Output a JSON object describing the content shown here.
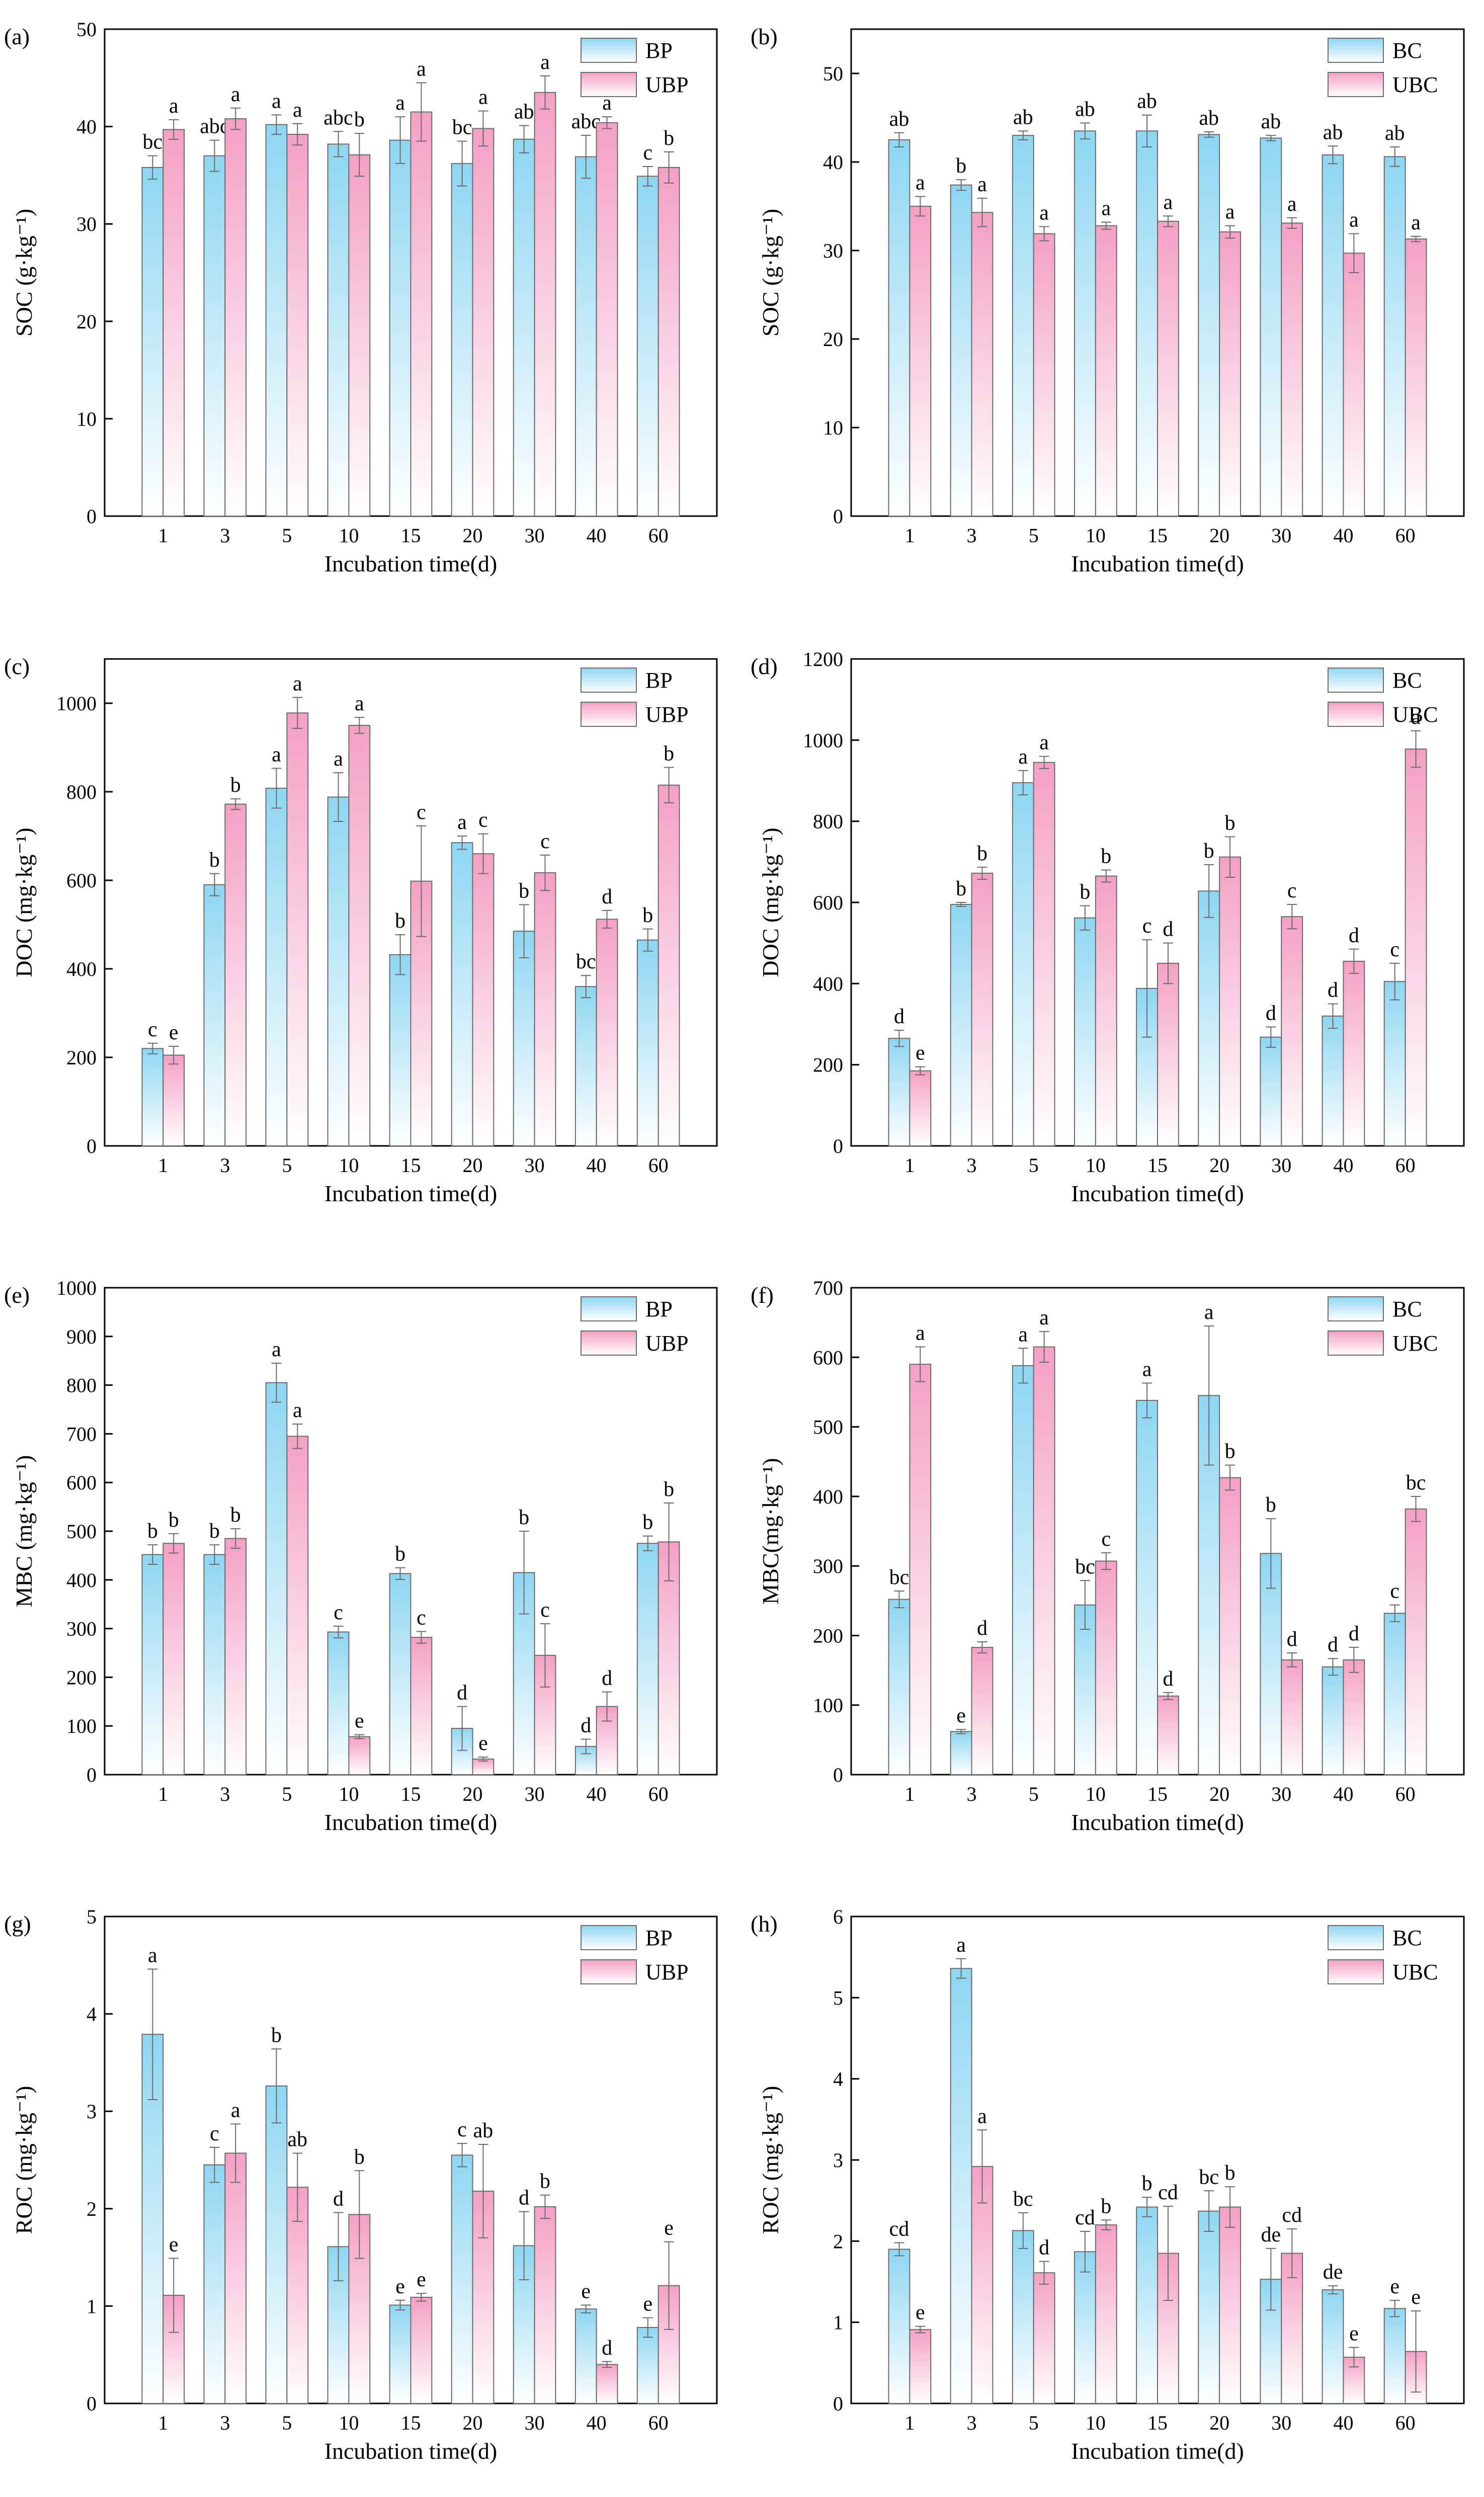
{
  "colors": {
    "blue_top": "#8ed6f2",
    "blue_bottom": "#ffffff",
    "pink_top": "#f4a0c4",
    "pink_bottom": "#ffffff",
    "edge": "#6b6b6b",
    "axis": "#000000"
  },
  "chart_data": [
    {
      "panel": "(a)",
      "type": "bar",
      "xlabel": "Incubation time(d)",
      "ylabel": "SOC (g·kg⁻¹)",
      "ylim": [
        0,
        50
      ],
      "yticks": [
        0,
        10,
        20,
        30,
        40,
        50
      ],
      "legend_position": "top-right",
      "categories": [
        "1",
        "3",
        "5",
        "10",
        "15",
        "20",
        "30",
        "40",
        "60"
      ],
      "series": [
        {
          "name": "BP",
          "color": "blue",
          "values": [
            35.8,
            37.0,
            40.2,
            38.2,
            38.6,
            36.2,
            38.7,
            36.9,
            34.9
          ],
          "errors": [
            1.2,
            1.6,
            1.0,
            1.3,
            2.4,
            2.3,
            1.4,
            2.2,
            1.0
          ],
          "letters": [
            "bc",
            "abc",
            "a",
            "abc",
            "a",
            "bc",
            "ab",
            "abc",
            "c"
          ]
        },
        {
          "name": "UBP",
          "color": "pink",
          "values": [
            39.7,
            40.8,
            39.2,
            37.1,
            41.5,
            39.8,
            43.5,
            40.4,
            35.8
          ],
          "errors": [
            1.0,
            1.1,
            1.1,
            2.2,
            3.0,
            1.8,
            1.7,
            0.6,
            1.6
          ],
          "letters": [
            "a",
            "a",
            "a",
            "b",
            "a",
            "a",
            "a",
            "a",
            "b"
          ]
        }
      ]
    },
    {
      "panel": "(b)",
      "type": "bar",
      "xlabel": "Incubation time(d)",
      "ylabel": "SOC (g·kg⁻¹)",
      "ylim": [
        0,
        55
      ],
      "yticks": [
        0,
        10,
        20,
        30,
        40,
        50
      ],
      "legend_position": "top-right",
      "categories": [
        "1",
        "3",
        "5",
        "10",
        "15",
        "20",
        "30",
        "40",
        "60"
      ],
      "series": [
        {
          "name": "BC",
          "color": "blue",
          "values": [
            42.5,
            37.4,
            43.0,
            43.5,
            43.5,
            43.1,
            42.7,
            40.8,
            40.6
          ],
          "errors": [
            0.8,
            0.6,
            0.5,
            0.9,
            1.8,
            0.3,
            0.3,
            1.0,
            1.1
          ],
          "letters": [
            "ab",
            "b",
            "ab",
            "ab",
            "ab",
            "ab",
            "ab",
            "ab",
            "ab"
          ]
        },
        {
          "name": "UBC",
          "color": "pink",
          "values": [
            35.0,
            34.3,
            31.9,
            32.8,
            33.3,
            32.1,
            33.1,
            29.7,
            31.3
          ],
          "errors": [
            1.1,
            1.6,
            0.8,
            0.4,
            0.6,
            0.7,
            0.6,
            2.2,
            0.3
          ],
          "letters": [
            "a",
            "a",
            "a",
            "a",
            "a",
            "a",
            "a",
            "a",
            "a"
          ]
        }
      ]
    },
    {
      "panel": "(c)",
      "type": "bar",
      "xlabel": "Incubation time(d)",
      "ylabel": "DOC (mg·kg⁻¹)",
      "ylim": [
        0,
        1100
      ],
      "yticks": [
        0,
        200,
        400,
        600,
        800,
        1000
      ],
      "legend_position": "top-right",
      "categories": [
        "1",
        "3",
        "5",
        "10",
        "15",
        "20",
        "30",
        "40",
        "60"
      ],
      "series": [
        {
          "name": "BP",
          "color": "blue",
          "values": [
            220,
            590,
            808,
            788,
            432,
            685,
            485,
            360,
            465
          ],
          "errors": [
            12,
            25,
            45,
            55,
            45,
            15,
            60,
            25,
            25
          ],
          "letters": [
            "c",
            "b",
            "a",
            "a",
            "b",
            "a",
            "b",
            "bc",
            "b"
          ]
        },
        {
          "name": "UBP",
          "color": "pink",
          "values": [
            205,
            772,
            978,
            950,
            598,
            660,
            617,
            512,
            815
          ],
          "errors": [
            20,
            12,
            35,
            18,
            125,
            45,
            40,
            20,
            40
          ],
          "letters": [
            "e",
            "b",
            "a",
            "a",
            "c",
            "c",
            "c",
            "d",
            "b"
          ]
        }
      ]
    },
    {
      "panel": "(d)",
      "type": "bar",
      "xlabel": "Incubation time(d)",
      "ylabel": "DOC (mg·kg⁻¹)",
      "ylim": [
        0,
        1200
      ],
      "yticks": [
        0,
        200,
        400,
        600,
        800,
        1000,
        1200
      ],
      "legend_position": "top-right",
      "categories": [
        "1",
        "3",
        "5",
        "10",
        "15",
        "20",
        "30",
        "40",
        "60"
      ],
      "series": [
        {
          "name": "BC",
          "color": "blue",
          "values": [
            265,
            595,
            895,
            562,
            388,
            628,
            268,
            320,
            405
          ],
          "errors": [
            20,
            5,
            30,
            30,
            120,
            65,
            25,
            30,
            45
          ],
          "letters": [
            "d",
            "b",
            "a",
            "b",
            "c",
            "b",
            "d",
            "d",
            "c"
          ]
        },
        {
          "name": "UBC",
          "color": "pink",
          "values": [
            185,
            672,
            945,
            665,
            450,
            712,
            565,
            455,
            978
          ],
          "errors": [
            10,
            15,
            15,
            15,
            50,
            50,
            30,
            30,
            45
          ],
          "letters": [
            "e",
            "b",
            "a",
            "b",
            "d",
            "b",
            "c",
            "d",
            "a"
          ]
        }
      ]
    },
    {
      "panel": "(e)",
      "type": "bar",
      "xlabel": "Incubation time(d)",
      "ylabel": "MBC (mg·kg⁻¹)",
      "ylim": [
        0,
        1000
      ],
      "yticks": [
        0,
        100,
        200,
        300,
        400,
        500,
        600,
        700,
        800,
        900,
        1000
      ],
      "legend_position": "top-right",
      "categories": [
        "1",
        "3",
        "5",
        "10",
        "15",
        "20",
        "30",
        "40",
        "60"
      ],
      "series": [
        {
          "name": "BP",
          "color": "blue",
          "values": [
            452,
            452,
            805,
            293,
            413,
            95,
            415,
            58,
            475
          ],
          "errors": [
            20,
            20,
            40,
            12,
            12,
            45,
            85,
            15,
            15
          ],
          "letters": [
            "b",
            "b",
            "a",
            "c",
            "b",
            "d",
            "b",
            "d",
            "b"
          ]
        },
        {
          "name": "UBP",
          "color": "pink",
          "values": [
            475,
            485,
            695,
            78,
            282,
            32,
            245,
            140,
            478
          ],
          "errors": [
            20,
            20,
            25,
            4,
            12,
            4,
            65,
            30,
            80
          ],
          "letters": [
            "b",
            "b",
            "a",
            "e",
            "c",
            "e",
            "c",
            "d",
            "b"
          ]
        }
      ]
    },
    {
      "panel": "(f)",
      "type": "bar",
      "xlabel": "Incubation time(d)",
      "ylabel": "MBC(mg·kg⁻¹)",
      "ylim": [
        0,
        700
      ],
      "yticks": [
        0,
        100,
        200,
        300,
        400,
        500,
        600,
        700
      ],
      "legend_position": "top-right",
      "categories": [
        "1",
        "3",
        "5",
        "10",
        "15",
        "20",
        "30",
        "40",
        "60"
      ],
      "series": [
        {
          "name": "BC",
          "color": "blue",
          "values": [
            252,
            62,
            588,
            244,
            538,
            545,
            318,
            155,
            232
          ],
          "errors": [
            12,
            3,
            25,
            35,
            25,
            100,
            50,
            12,
            12
          ],
          "letters": [
            "bc",
            "e",
            "a",
            "bc",
            "a",
            "a",
            "b",
            "d",
            "c"
          ]
        },
        {
          "name": "UBC",
          "color": "pink",
          "values": [
            590,
            183,
            615,
            307,
            113,
            427,
            165,
            165,
            382
          ],
          "errors": [
            25,
            8,
            22,
            12,
            5,
            18,
            10,
            18,
            18
          ],
          "letters": [
            "a",
            "d",
            "a",
            "c",
            "d",
            "b",
            "d",
            "d",
            "bc"
          ]
        }
      ]
    },
    {
      "panel": "(g)",
      "type": "bar",
      "xlabel": "Incubation time(d)",
      "ylabel": "ROC (mg·kg⁻¹)",
      "ylim": [
        0,
        5
      ],
      "yticks": [
        0,
        1,
        2,
        3,
        4,
        5
      ],
      "legend_position": "top-right",
      "categories": [
        "1",
        "3",
        "5",
        "10",
        "15",
        "20",
        "30",
        "40",
        "60"
      ],
      "series": [
        {
          "name": "BP",
          "color": "blue",
          "values": [
            3.79,
            2.45,
            3.26,
            1.61,
            1.01,
            2.55,
            1.62,
            0.97,
            0.78
          ],
          "errors": [
            0.67,
            0.18,
            0.38,
            0.35,
            0.05,
            0.12,
            0.35,
            0.04,
            0.1
          ],
          "letters": [
            "a",
            "c",
            "b",
            "d",
            "e",
            "c",
            "d",
            "e",
            "e"
          ]
        },
        {
          "name": "UBP",
          "color": "pink",
          "values": [
            1.11,
            2.57,
            2.22,
            1.94,
            1.09,
            2.18,
            2.02,
            0.4,
            1.21
          ],
          "errors": [
            0.38,
            0.3,
            0.35,
            0.45,
            0.04,
            0.48,
            0.12,
            0.03,
            0.45
          ],
          "letters": [
            "e",
            "a",
            "ab",
            "b",
            "e",
            "ab",
            "b",
            "d",
            "e"
          ]
        }
      ]
    },
    {
      "panel": "(h)",
      "type": "bar",
      "xlabel": "Incubation time(d)",
      "ylabel": "ROC (mg·kg⁻¹)",
      "ylim": [
        0,
        6
      ],
      "yticks": [
        0,
        1,
        2,
        3,
        4,
        5,
        6
      ],
      "legend_position": "top-right",
      "categories": [
        "1",
        "3",
        "5",
        "10",
        "15",
        "20",
        "30",
        "40",
        "60"
      ],
      "series": [
        {
          "name": "BC",
          "color": "blue",
          "values": [
            1.9,
            5.36,
            2.13,
            1.87,
            2.42,
            2.37,
            1.53,
            1.4,
            1.17
          ],
          "errors": [
            0.08,
            0.12,
            0.22,
            0.25,
            0.12,
            0.25,
            0.38,
            0.05,
            0.1
          ],
          "letters": [
            "cd",
            "a",
            "bc",
            "cd",
            "b",
            "bc",
            "de",
            "de",
            "e"
          ]
        },
        {
          "name": "UBC",
          "color": "pink",
          "values": [
            0.91,
            2.92,
            1.61,
            2.2,
            1.85,
            2.42,
            1.85,
            0.57,
            0.64
          ],
          "errors": [
            0.04,
            0.45,
            0.14,
            0.06,
            0.58,
            0.25,
            0.3,
            0.12,
            0.5
          ],
          "letters": [
            "e",
            "a",
            "d",
            "b",
            "cd",
            "b",
            "cd",
            "e",
            "e"
          ]
        }
      ]
    }
  ]
}
